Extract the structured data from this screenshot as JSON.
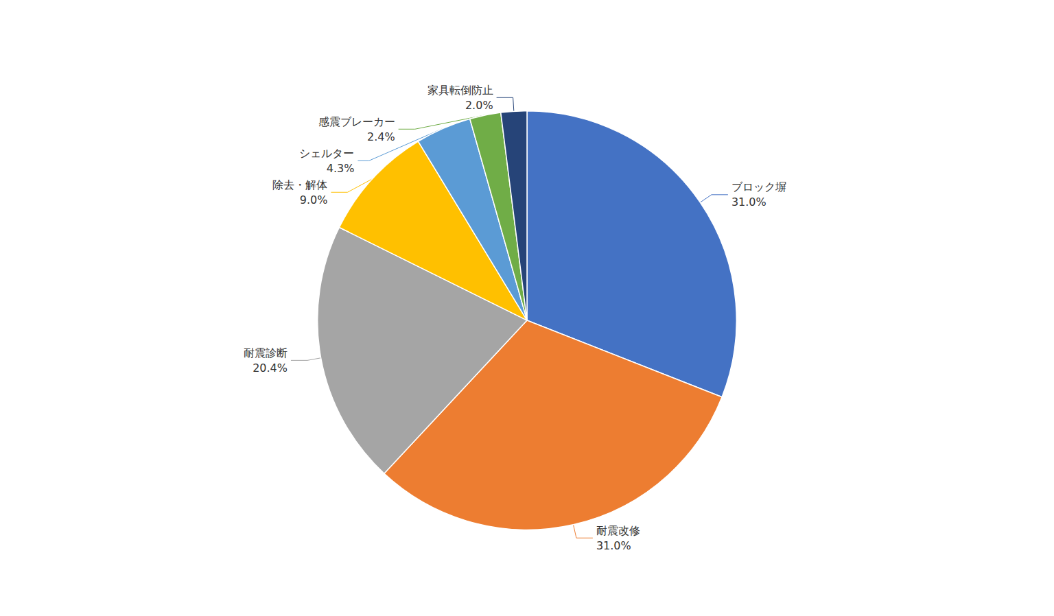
{
  "chart_data": {
    "type": "pie",
    "categories": [
      "ブロック塀",
      "耐震改修",
      "耐震診断",
      "除去・解体",
      "シェルター",
      "感震ブレーカー",
      "家具転倒防止"
    ],
    "values": [
      31.0,
      31.0,
      20.4,
      9.0,
      4.3,
      2.4,
      2.0
    ],
    "value_labels": [
      "31.0%",
      "31.0%",
      "20.4%",
      "9.0%",
      "4.3%",
      "2.4%",
      "2.0%"
    ],
    "colors": [
      "#4472C4",
      "#ED7D31",
      "#A5A5A5",
      "#FFC000",
      "#5B9BD5",
      "#70AD47",
      "#264478"
    ],
    "data_labels": true
  }
}
